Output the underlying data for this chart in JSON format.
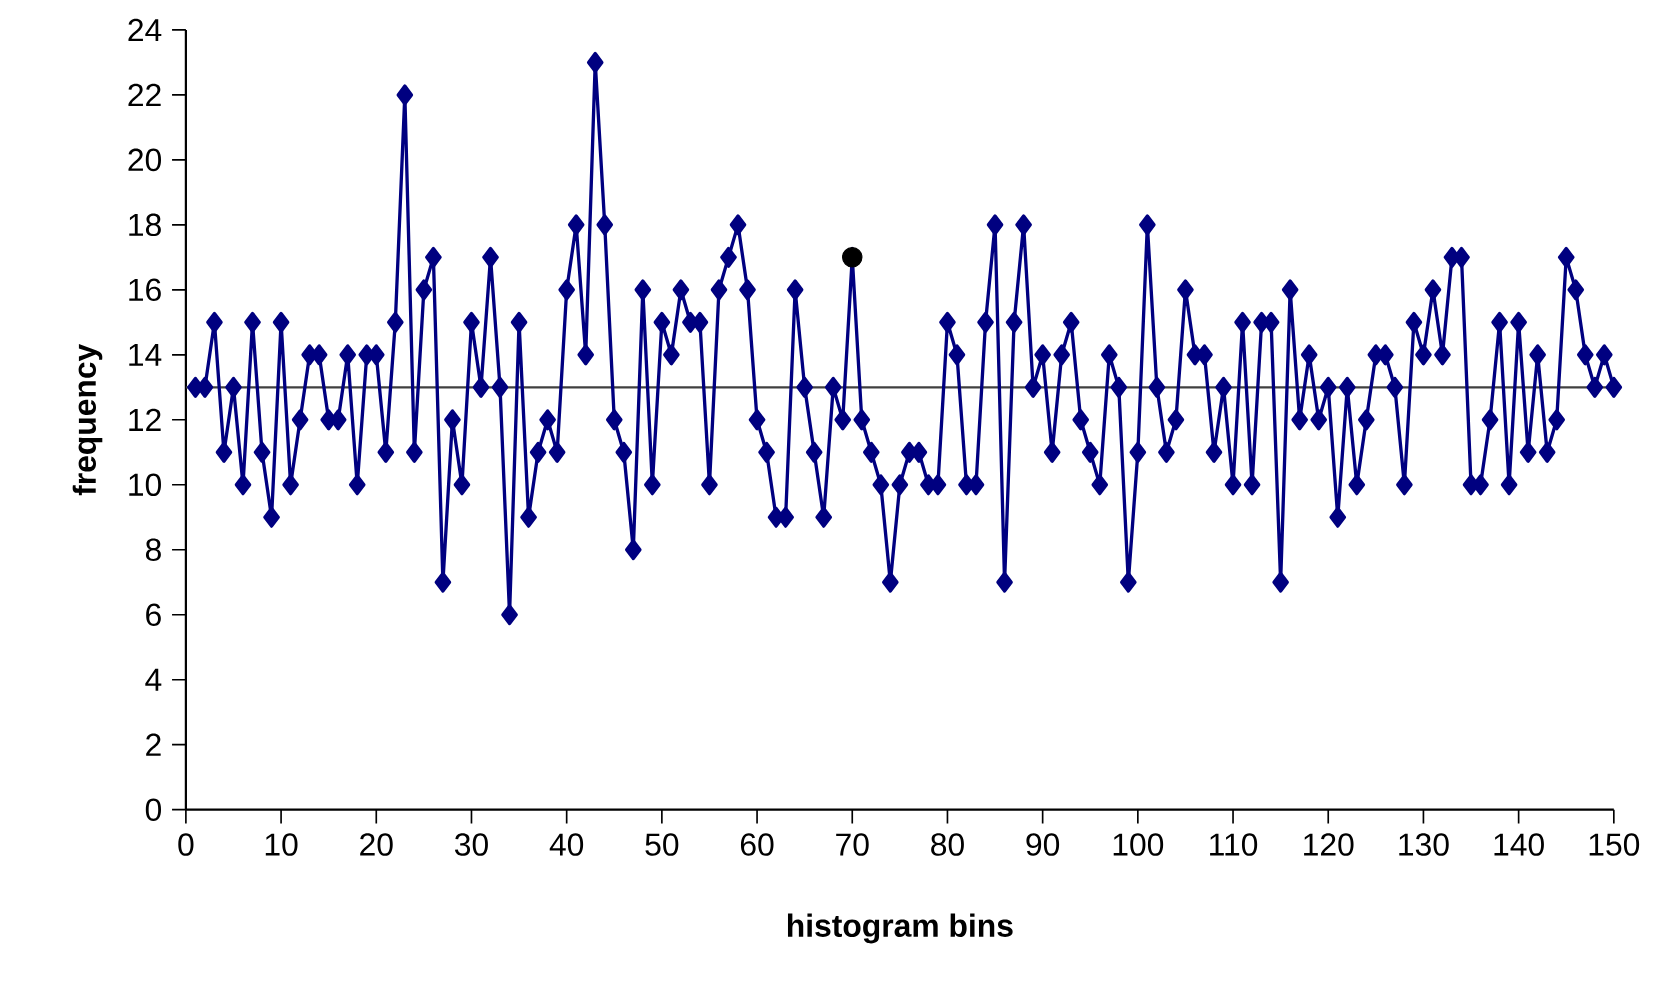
{
  "chart_data": {
    "type": "line",
    "xlabel": "histogram bins",
    "ylabel": "frequency",
    "series": [
      {
        "color": "#000080",
        "marker": "diamond",
        "x": [
          1,
          2,
          3,
          4,
          5,
          6,
          7,
          8,
          9,
          10,
          11,
          12,
          13,
          14,
          15,
          16,
          17,
          18,
          19,
          20,
          21,
          22,
          23,
          24,
          25,
          26,
          27,
          28,
          29,
          30,
          31,
          32,
          33,
          34,
          35,
          36,
          37,
          38,
          39,
          40,
          41,
          42,
          43,
          44,
          45,
          46,
          47,
          48,
          49,
          50,
          51,
          52,
          53,
          54,
          55,
          56,
          57,
          58,
          59,
          60,
          61,
          62,
          63,
          64,
          65,
          66,
          67,
          68,
          69,
          70,
          71,
          72,
          73,
          74,
          75,
          76,
          77,
          78,
          79,
          80,
          81,
          82,
          83,
          84,
          85,
          86,
          87,
          88,
          89,
          90,
          91,
          92,
          93,
          94,
          95,
          96,
          97,
          98,
          99,
          100,
          101,
          102,
          103,
          104,
          105,
          106,
          107,
          108,
          109,
          110,
          111,
          112,
          113,
          114,
          115,
          116,
          117,
          118,
          119,
          120,
          121,
          122,
          123,
          124,
          125,
          126,
          127,
          128,
          129,
          130,
          131,
          132,
          133,
          134,
          135,
          136,
          137,
          138,
          139,
          140,
          141,
          142,
          143,
          144,
          145,
          146,
          147,
          148,
          149,
          150
        ],
        "values": [
          13,
          13,
          15,
          11,
          13,
          10,
          15,
          11,
          9,
          15,
          10,
          12,
          14,
          14,
          12,
          12,
          14,
          10,
          14,
          14,
          11,
          15,
          22,
          11,
          16,
          17,
          7,
          12,
          10,
          15,
          13,
          17,
          13,
          6,
          15,
          9,
          11,
          12,
          11,
          16,
          18,
          14,
          23,
          18,
          12,
          11,
          8,
          16,
          10,
          15,
          14,
          16,
          15,
          15,
          10,
          16,
          17,
          18,
          16,
          12,
          11,
          9,
          9,
          16,
          13,
          11,
          9,
          13,
          12,
          17,
          12,
          11,
          10,
          7,
          10,
          11,
          11,
          10,
          10,
          15,
          14,
          10,
          10,
          15,
          18,
          7,
          15,
          18,
          13,
          14,
          11,
          14,
          15,
          12,
          11,
          10,
          14,
          13,
          7,
          11,
          18,
          13,
          11,
          12,
          16,
          14,
          14,
          11,
          13,
          10,
          15,
          10,
          15,
          15,
          7,
          16,
          12,
          14,
          12,
          13,
          9,
          13,
          10,
          12,
          14,
          14,
          13,
          10,
          15,
          14,
          16,
          14,
          17,
          17,
          10,
          10,
          12,
          15,
          10,
          15,
          11,
          14,
          11,
          12,
          17,
          16,
          14,
          13,
          14,
          13
        ]
      },
      {
        "type": "scatter",
        "color": "#000000",
        "marker": "circle",
        "x": [
          70
        ],
        "values": [
          17
        ]
      }
    ],
    "xlim": [
      0,
      150
    ],
    "xticks": [
      0,
      10,
      20,
      30,
      40,
      50,
      60,
      70,
      80,
      90,
      100,
      110,
      120,
      130,
      140,
      150
    ],
    "ylim": [
      0,
      24
    ],
    "yticks": [
      0,
      2,
      4,
      6,
      8,
      10,
      12,
      14,
      16,
      18,
      20,
      22,
      24
    ],
    "ref_lines": [
      {
        "axis": "y",
        "value": 13,
        "color": "#404040"
      }
    ],
    "grid": false
  }
}
